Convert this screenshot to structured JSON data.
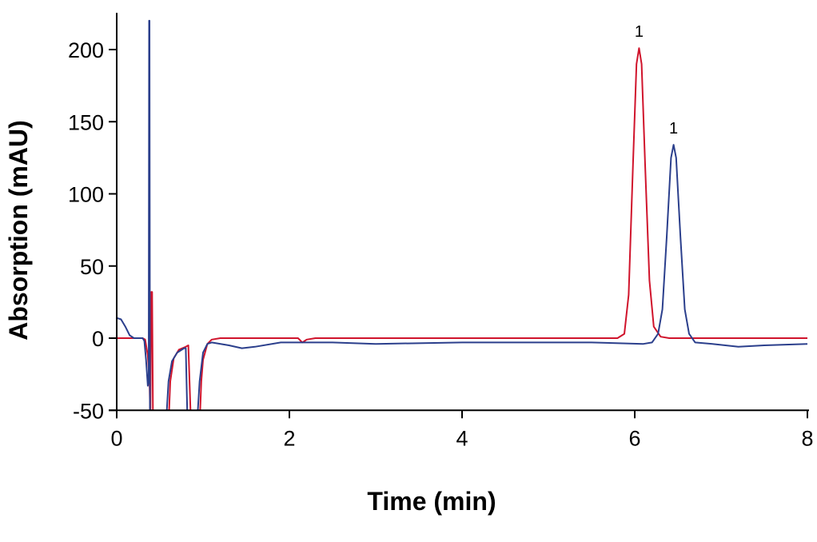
{
  "chart_data": {
    "type": "line",
    "title": "",
    "xlabel": "Time (min)",
    "ylabel": "Absorption (mAU)",
    "xlim": [
      0,
      8
    ],
    "ylim": [
      -50,
      225
    ],
    "xticks": [
      0,
      2,
      4,
      6,
      8
    ],
    "yticks": [
      -50,
      0,
      50,
      100,
      150,
      200
    ],
    "grid": false,
    "legend": null,
    "series": [
      {
        "name": "red trace",
        "color": "#d0142c",
        "points": [
          [
            0.0,
            0
          ],
          [
            0.3,
            0
          ],
          [
            0.33,
            -1
          ],
          [
            0.36,
            -12
          ],
          [
            0.38,
            -30
          ],
          [
            0.385,
            -45
          ],
          [
            0.39,
            -60
          ],
          [
            0.4,
            32
          ],
          [
            0.41,
            32
          ],
          [
            0.42,
            -60
          ],
          [
            0.6,
            -60
          ],
          [
            0.62,
            -30
          ],
          [
            0.66,
            -14
          ],
          [
            0.72,
            -8
          ],
          [
            0.8,
            -6
          ],
          [
            0.83,
            -5
          ],
          [
            0.86,
            -60
          ],
          [
            0.96,
            -60
          ],
          [
            0.98,
            -30
          ],
          [
            1.0,
            -15
          ],
          [
            1.05,
            -4
          ],
          [
            1.1,
            -1
          ],
          [
            1.2,
            0
          ],
          [
            2.0,
            0
          ],
          [
            2.1,
            0
          ],
          [
            2.15,
            -3
          ],
          [
            2.2,
            -1
          ],
          [
            2.3,
            0
          ],
          [
            5.8,
            0
          ],
          [
            5.88,
            3
          ],
          [
            5.93,
            30
          ],
          [
            5.98,
            120
          ],
          [
            6.02,
            190
          ],
          [
            6.05,
            201
          ],
          [
            6.08,
            190
          ],
          [
            6.12,
            120
          ],
          [
            6.17,
            40
          ],
          [
            6.22,
            8
          ],
          [
            6.3,
            1
          ],
          [
            6.4,
            0
          ],
          [
            8.0,
            0
          ]
        ],
        "peak_annotations": [
          {
            "x": 6.05,
            "y": 201,
            "label": "1"
          }
        ]
      },
      {
        "name": "blue trace",
        "color": "#2b3f8c",
        "points": [
          [
            0.0,
            14
          ],
          [
            0.05,
            13
          ],
          [
            0.1,
            8
          ],
          [
            0.15,
            2
          ],
          [
            0.2,
            0
          ],
          [
            0.3,
            0
          ],
          [
            0.32,
            -2
          ],
          [
            0.34,
            -15
          ],
          [
            0.36,
            -33
          ],
          [
            0.37,
            -30
          ],
          [
            0.375,
            220
          ],
          [
            0.38,
            220
          ],
          [
            0.385,
            -55
          ],
          [
            0.4,
            -60
          ],
          [
            0.57,
            -60
          ],
          [
            0.6,
            -30
          ],
          [
            0.64,
            -16
          ],
          [
            0.7,
            -10
          ],
          [
            0.78,
            -7
          ],
          [
            0.8,
            -7
          ],
          [
            0.82,
            -60
          ],
          [
            0.93,
            -60
          ],
          [
            0.96,
            -30
          ],
          [
            1.0,
            -10
          ],
          [
            1.05,
            -4
          ],
          [
            1.1,
            -3
          ],
          [
            1.3,
            -5
          ],
          [
            1.45,
            -7
          ],
          [
            1.6,
            -6
          ],
          [
            1.9,
            -3
          ],
          [
            2.5,
            -3
          ],
          [
            3.0,
            -4
          ],
          [
            4.0,
            -3
          ],
          [
            5.0,
            -3
          ],
          [
            5.5,
            -3
          ],
          [
            6.1,
            -4
          ],
          [
            6.2,
            -3
          ],
          [
            6.27,
            3
          ],
          [
            6.32,
            20
          ],
          [
            6.37,
            70
          ],
          [
            6.42,
            125
          ],
          [
            6.45,
            134
          ],
          [
            6.48,
            125
          ],
          [
            6.53,
            70
          ],
          [
            6.58,
            20
          ],
          [
            6.63,
            3
          ],
          [
            6.7,
            -3
          ],
          [
            6.9,
            -4
          ],
          [
            7.2,
            -6
          ],
          [
            7.5,
            -5
          ],
          [
            8.0,
            -4
          ]
        ],
        "peak_annotations": [
          {
            "x": 6.45,
            "y": 134,
            "label": "1"
          }
        ]
      }
    ]
  }
}
